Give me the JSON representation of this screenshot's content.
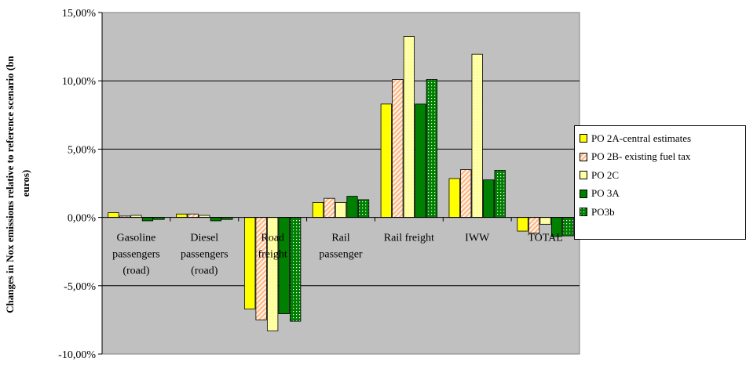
{
  "chart_data": {
    "type": "bar",
    "title": "",
    "xlabel": "",
    "ylabel": "Changes in Nox emissions relative to reference scenario (bn euros)",
    "ylim": [
      -10,
      15
    ],
    "yticks": [
      -10,
      -5,
      0,
      5,
      10,
      15
    ],
    "ytick_labels": [
      "-10,00%",
      "-5,00%",
      "0,00%",
      "5,00%",
      "10,00%",
      "15,00%"
    ],
    "grid": "horizontal major gridlines",
    "legend_position": "right",
    "categories": [
      "Gasoline passengers (road)",
      "Diesel passengers (road)",
      "Road freight",
      "Rail passenger",
      "Rail freight",
      "IWW",
      "TOTAL"
    ],
    "category_lines": [
      [
        "Gasoline",
        "passengers",
        "(road)"
      ],
      [
        "Diesel",
        "passengers",
        "(road)"
      ],
      [
        "Road",
        "freight"
      ],
      [
        "Rail",
        "passenger"
      ],
      [
        "Rail freight"
      ],
      [
        "IWW"
      ],
      [
        "TOTAL"
      ]
    ],
    "series": [
      {
        "name": "PO 2A-central estimates",
        "color": "#ffff00",
        "pattern": "solid",
        "values": [
          0.35,
          0.25,
          -6.7,
          1.1,
          8.3,
          2.85,
          -1.0
        ]
      },
      {
        "name": "PO 2B- existing fuel tax",
        "color": "#ffcc99",
        "pattern": "diagonal-stripes",
        "values": [
          0.1,
          0.25,
          -7.5,
          1.4,
          10.1,
          3.5,
          -1.15
        ]
      },
      {
        "name": "PO 2C",
        "color": "#ffff99",
        "pattern": "dotted",
        "values": [
          0.15,
          0.15,
          -8.3,
          1.1,
          13.25,
          11.95,
          -0.5
        ]
      },
      {
        "name": "PO 3A",
        "color": "#008000",
        "pattern": "solid",
        "values": [
          -0.25,
          -0.25,
          -7.05,
          1.55,
          8.3,
          2.75,
          -1.4
        ]
      },
      {
        "name": "PO3b",
        "color": "#008000",
        "pattern": "dotted",
        "values": [
          -0.15,
          -0.15,
          -7.6,
          1.3,
          10.1,
          3.45,
          -1.35
        ]
      }
    ]
  }
}
